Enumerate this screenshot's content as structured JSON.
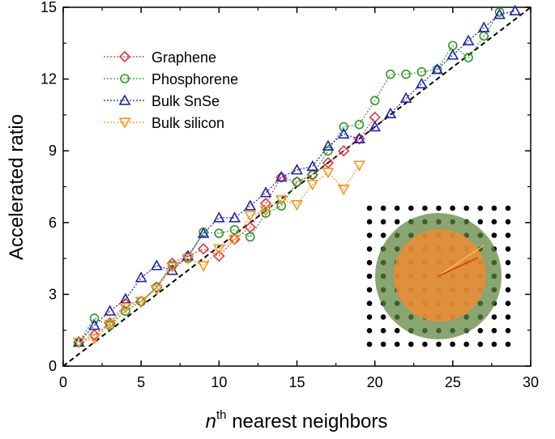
{
  "chart_data": {
    "type": "line",
    "x_label": [
      "n",
      "th",
      " nearest neighbors"
    ],
    "y_label": "Accelerated ratio",
    "xlim": [
      0,
      30
    ],
    "xticks": [
      0,
      5,
      10,
      15,
      20,
      25,
      30
    ],
    "ylim": [
      0,
      15
    ],
    "yticks": [
      0,
      3,
      6,
      9,
      12,
      15
    ],
    "legend": "upper left",
    "series": [
      {
        "name": "Graphene",
        "color": "#e8333b",
        "marker": "diamond",
        "x": [
          1,
          2,
          3,
          4,
          5,
          6,
          7,
          8,
          9,
          10,
          11,
          12,
          13,
          14,
          15,
          16,
          17,
          18,
          19,
          20
        ],
        "values": [
          1.0,
          1.3,
          1.8,
          2.6,
          2.7,
          3.3,
          4.3,
          4.6,
          4.9,
          4.6,
          5.3,
          5.8,
          6.8,
          7.9,
          7.7,
          8.0,
          8.5,
          9.0,
          9.5,
          10.4
        ]
      },
      {
        "name": "Phosphorene",
        "color": "#2a9a2a",
        "marker": "circle",
        "x": [
          1,
          2,
          3,
          4,
          5,
          6,
          7,
          8,
          9,
          10,
          11,
          12,
          13,
          14,
          15,
          16,
          17,
          18,
          19,
          20,
          21,
          22,
          23,
          24,
          25,
          26,
          27,
          28
        ],
        "values": [
          1.0,
          2.0,
          1.7,
          2.3,
          2.7,
          3.3,
          4.2,
          4.5,
          5.6,
          5.55,
          5.7,
          5.4,
          6.4,
          6.7,
          7.7,
          8.0,
          9.0,
          10.0,
          10.1,
          11.1,
          12.2,
          12.2,
          12.3,
          12.4,
          13.4,
          12.9,
          13.8,
          14.8
        ]
      },
      {
        "name": "Bulk SnSe",
        "color": "#1f23a8",
        "marker": "triangle",
        "x": [
          1,
          2,
          3,
          4,
          5,
          6,
          7,
          8,
          9,
          10,
          11,
          12,
          13,
          14,
          15,
          16,
          17,
          18,
          19,
          20,
          21,
          22,
          23,
          24,
          25,
          26,
          27,
          28,
          29
        ],
        "values": [
          1.0,
          1.7,
          2.3,
          2.8,
          3.7,
          4.2,
          4.0,
          4.6,
          5.55,
          6.2,
          6.2,
          6.7,
          7.25,
          7.9,
          8.2,
          8.35,
          9.2,
          9.7,
          9.5,
          10.0,
          10.55,
          11.2,
          11.8,
          12.4,
          13.0,
          13.6,
          14.15,
          14.7,
          14.85
        ]
      },
      {
        "name": "Bulk silicon",
        "color": "#f7941d",
        "marker": "triangle-down",
        "x": [
          1,
          2,
          3,
          4,
          5,
          6,
          7,
          8,
          9,
          10,
          11,
          12,
          13,
          14,
          15,
          16,
          17,
          18,
          19
        ],
        "values": [
          1.0,
          1.15,
          1.75,
          2.45,
          2.7,
          3.2,
          4.15,
          4.5,
          4.2,
          4.9,
          5.3,
          6.3,
          6.5,
          6.95,
          6.75,
          7.6,
          8.1,
          7.4,
          8.4
        ]
      }
    ]
  }
}
